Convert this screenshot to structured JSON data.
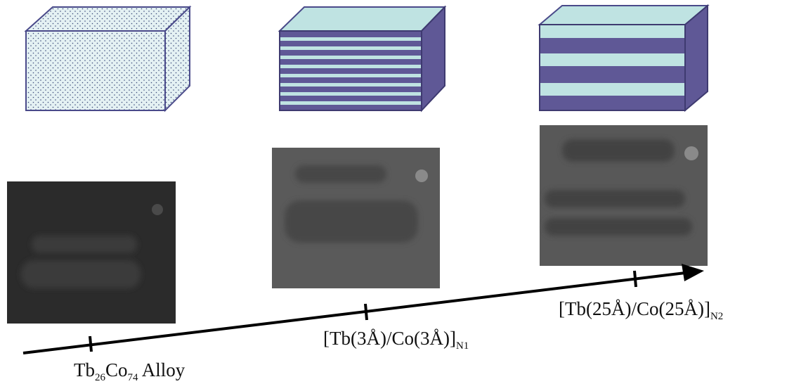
{
  "samples": [
    {
      "label": [
        {
          "base": "Tb",
          "sub": "26"
        },
        {
          "base": "Co",
          "sub": "74"
        },
        {
          "base": " Alloy"
        }
      ]
    },
    {
      "label": [
        {
          "base": "[Tb(3Å)/Co(3Å)]",
          "sub": "N1"
        }
      ]
    },
    {
      "label": [
        {
          "base": "[Tb(25Å)/Co(25Å)]",
          "sub": "N2"
        }
      ]
    }
  ]
}
